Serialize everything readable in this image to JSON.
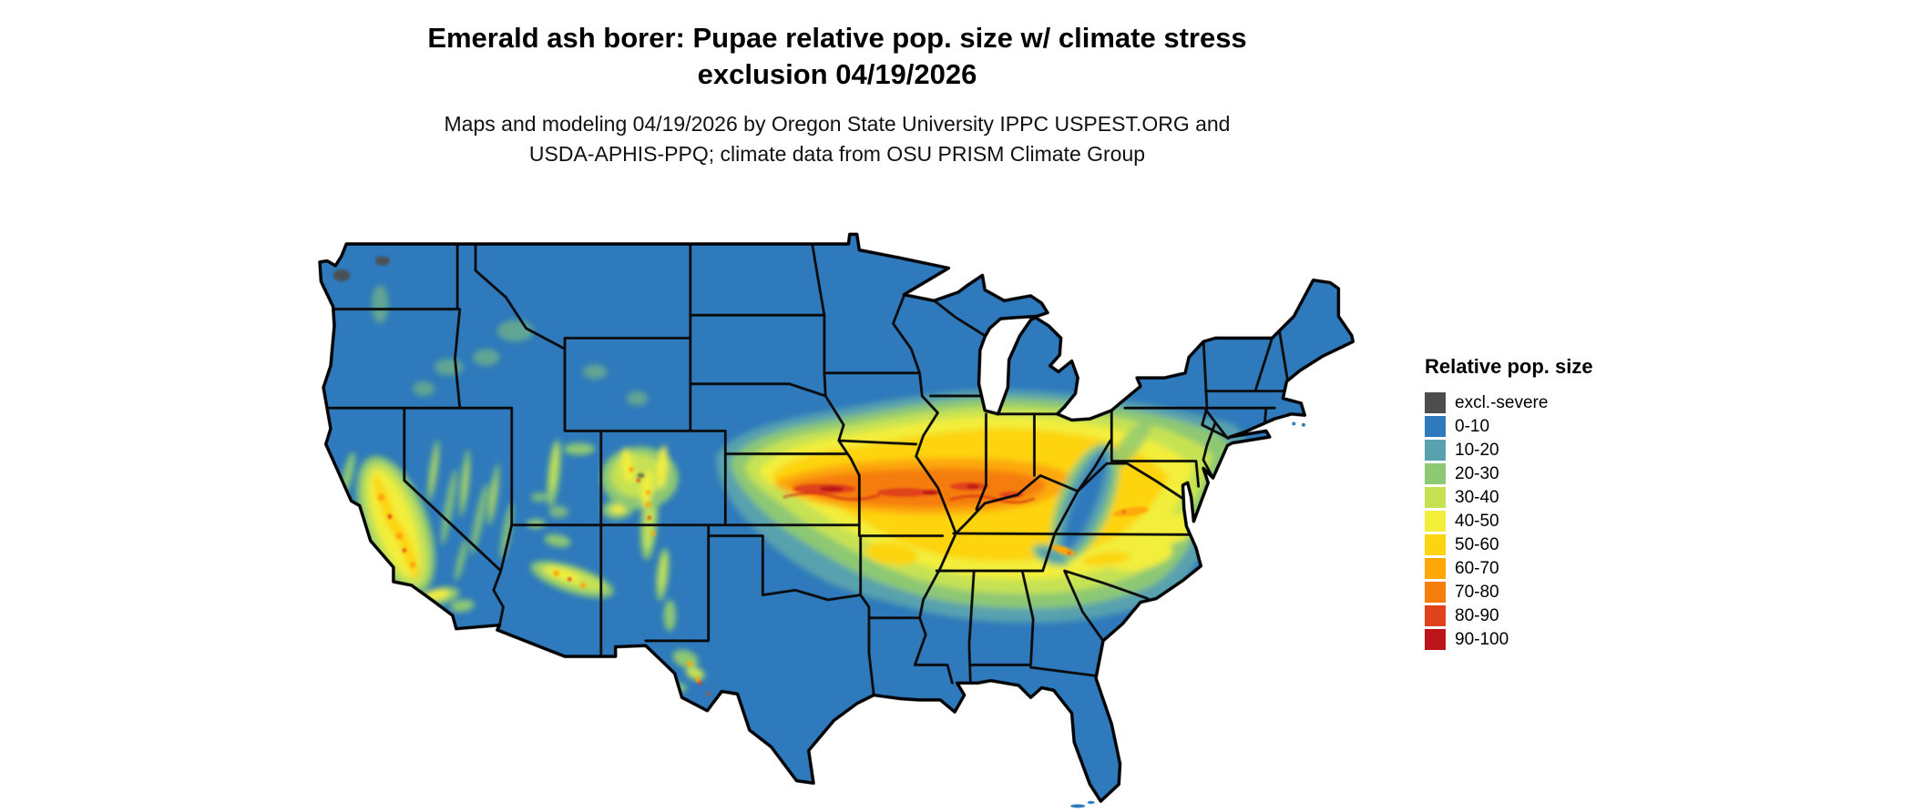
{
  "title": {
    "line1": "Emerald ash borer: Pupae relative pop. size w/ climate stress",
    "line2": "exclusion 04/19/2026"
  },
  "subtitle": {
    "line1": "Maps and modeling 04/19/2026 by Oregon State University IPPC USPEST.ORG and",
    "line2": "USDA-APHIS-PPQ; climate data from OSU PRISM Climate Group"
  },
  "map": {
    "region": "Contiguous United States",
    "kind": "raster choropleth of relative population size with state boundaries"
  },
  "legend": {
    "title": "Relative pop. size",
    "items": [
      {
        "label": "excl.-severe",
        "color": "#4d4d4d"
      },
      {
        "label": "0-10",
        "color": "#2e7abc"
      },
      {
        "label": "10-20",
        "color": "#58a1ae"
      },
      {
        "label": "20-30",
        "color": "#8dc873"
      },
      {
        "label": "30-40",
        "color": "#c6e252"
      },
      {
        "label": "40-50",
        "color": "#f2ee3a"
      },
      {
        "label": "50-60",
        "color": "#fdd411"
      },
      {
        "label": "60-70",
        "color": "#fda808"
      },
      {
        "label": "70-80",
        "color": "#f57d0a"
      },
      {
        "label": "80-90",
        "color": "#e0421c"
      },
      {
        "label": "90-100",
        "color": "#bb1419"
      }
    ]
  }
}
